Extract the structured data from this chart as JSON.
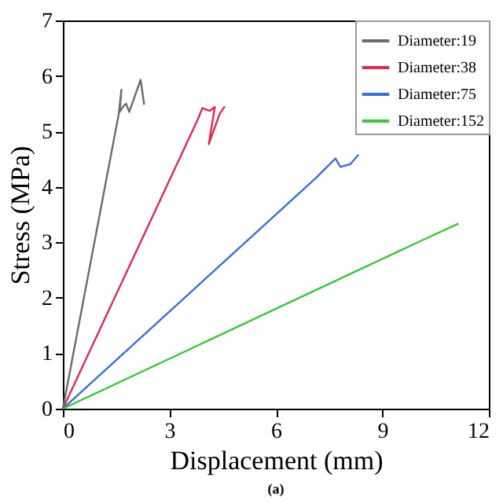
{
  "chart_data": {
    "type": "line",
    "xlabel": "Displacement (mm)",
    "ylabel": "Stress (MPa)",
    "xlim": [
      0,
      12
    ],
    "xticks": [
      0,
      3,
      6,
      9,
      12
    ],
    "ylim": [
      0,
      7
    ],
    "yticks": [
      0,
      1,
      2,
      3,
      4,
      5,
      6,
      7
    ],
    "grid": false,
    "legend": "top right",
    "marker": "none",
    "line_style": "solid",
    "annotations": [
      "(a)"
    ],
    "series": [
      {
        "name": "Diameter:19",
        "color": "#6b6b6b",
        "x": [
          0,
          1.57,
          1.65,
          1.6,
          1.7,
          1.78,
          1.87,
          2.19,
          2.29
        ],
        "values": [
          0,
          5.3,
          5.75,
          5.35,
          5.45,
          5.5,
          5.35,
          5.93,
          5.48
        ]
      },
      {
        "name": "Diameter:38",
        "color": "#e0284f",
        "x": [
          0,
          3.79,
          3.93,
          4.14,
          4.28,
          4.11,
          4.42,
          4.56
        ],
        "values": [
          0,
          5.2,
          5.42,
          5.37,
          5.44,
          4.77,
          5.32,
          5.45
        ]
      },
      {
        "name": "Diameter:75",
        "color": "#3a6fd8",
        "x": [
          0,
          7.13,
          7.68,
          7.82,
          8.1,
          8.33
        ],
        "values": [
          0,
          4.16,
          4.51,
          4.36,
          4.41,
          4.58
        ]
      },
      {
        "name": "Diameter:152",
        "color": "#33cc33",
        "x": [
          0,
          10.0,
          11.15
        ],
        "values": [
          0,
          3.0,
          3.34
        ]
      }
    ]
  }
}
